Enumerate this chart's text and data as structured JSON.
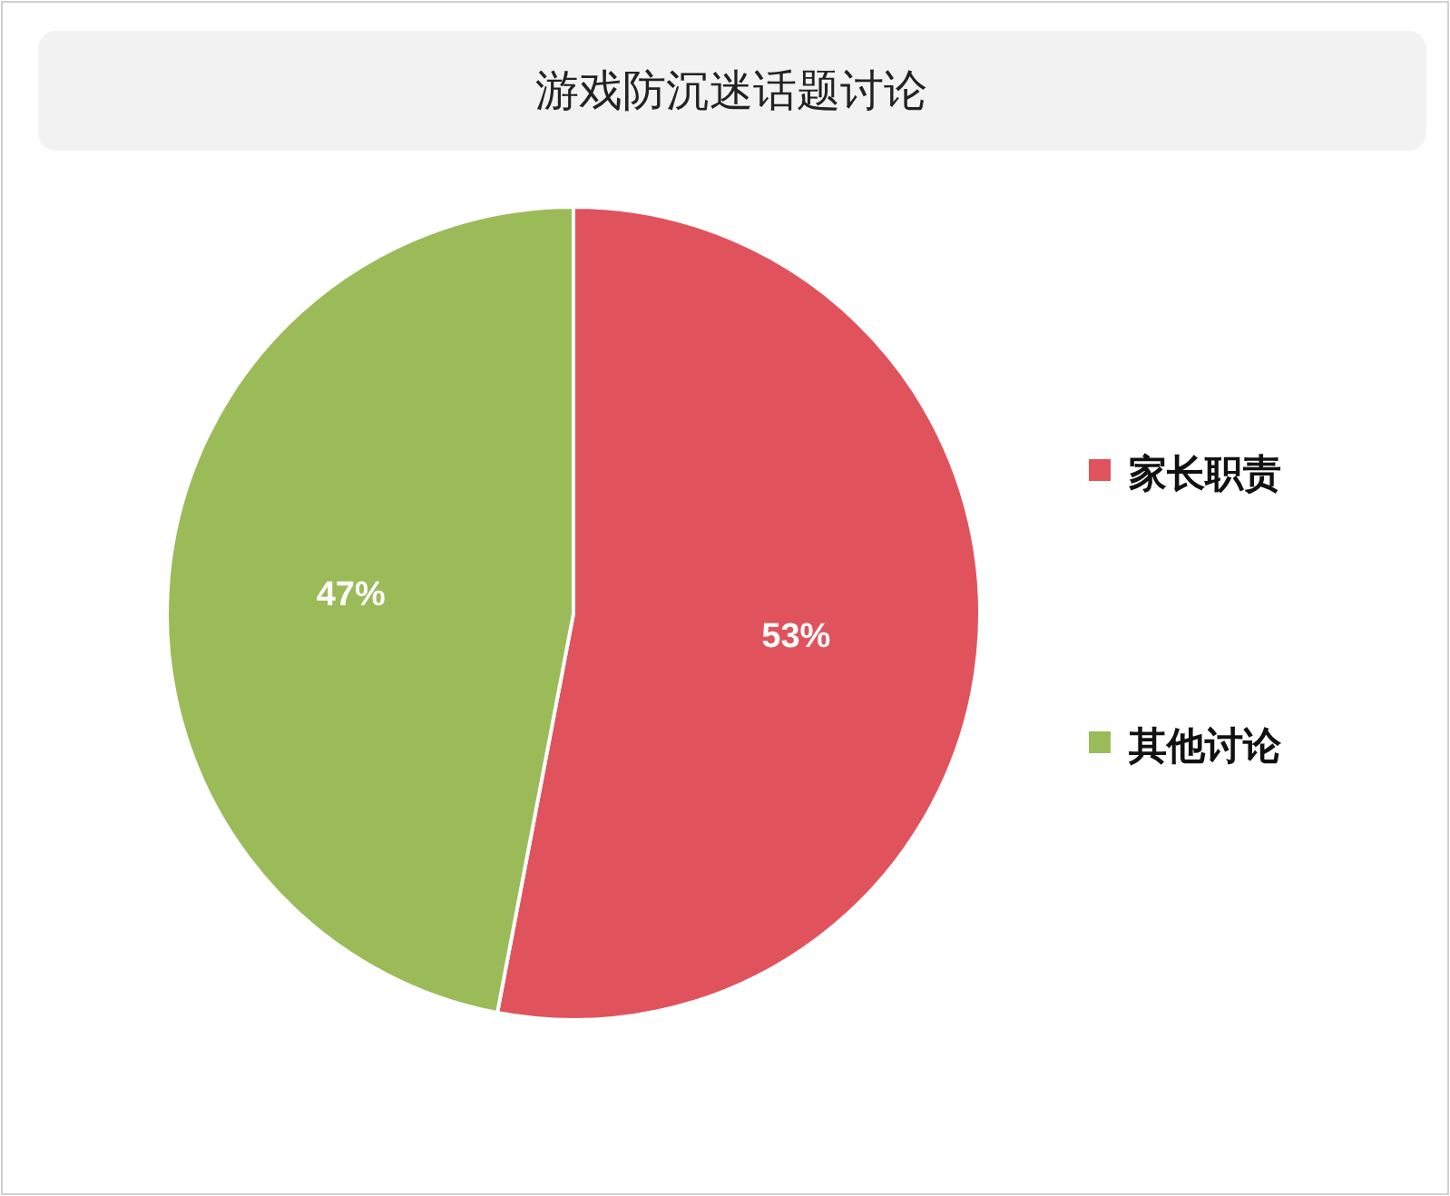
{
  "chart_data": {
    "type": "pie",
    "title": "游戏防沉迷话题讨论",
    "categories": [
      "家长职责",
      "其他讨论"
    ],
    "values": [
      53,
      47
    ],
    "colors": [
      "#e0535d",
      "#9bbb59"
    ],
    "value_labels": [
      "53%",
      "47%"
    ],
    "legend": "right"
  }
}
